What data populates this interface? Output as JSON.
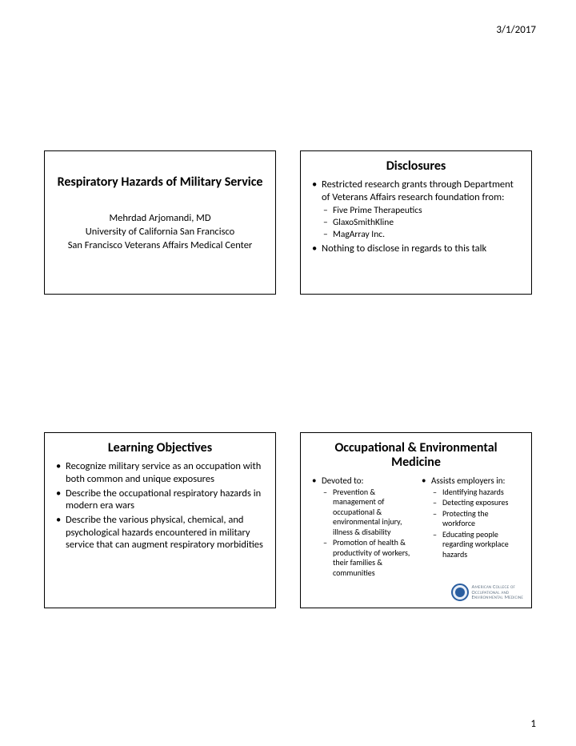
{
  "meta": {
    "date": "3/1/2017",
    "page_number": "1"
  },
  "slides": {
    "s1": {
      "title": "Respiratory Hazards of Military Service",
      "author": "Mehrdad Arjomandi, MD",
      "affil1": "University of California San Francisco",
      "affil2": "San Francisco Veterans Affairs Medical Center"
    },
    "s2": {
      "title": "Disclosures",
      "b1": "Restricted research grants through Department of Veterans Affairs research foundation from:",
      "b1a": "Five Prime Therapeutics",
      "b1b": "GlaxoSmithKline",
      "b1c": "MagArray Inc.",
      "b2": "Nothing to disclose in regards to this talk"
    },
    "s3": {
      "title": "Learning Objectives",
      "b1": "Recognize military service as an occupation with both common and unique exposures",
      "b2": "Describe the occupational respiratory hazards in modern era wars",
      "b3": "Describe the various physical, chemical, and psychological hazards encountered in military service that can augment respiratory morbidities"
    },
    "s4": {
      "title": "Occupational & Environmental Medicine",
      "left": {
        "b1": "Devoted to:",
        "b1a": "Prevention & management of occupational & environmental injury, illness & disability",
        "b1b": "Promotion of health & productivity of workers, their families & communities"
      },
      "right": {
        "b1": "Assists employers in:",
        "b1a": "Identifying hazards",
        "b1b": "Detecting exposures",
        "b1c": "Protecting the workforce",
        "b1d": "Educating people regarding workplace hazards"
      },
      "logo": {
        "line1": "American College of",
        "line2": "Occupational and",
        "line3": "Environmental Medicine"
      }
    }
  }
}
